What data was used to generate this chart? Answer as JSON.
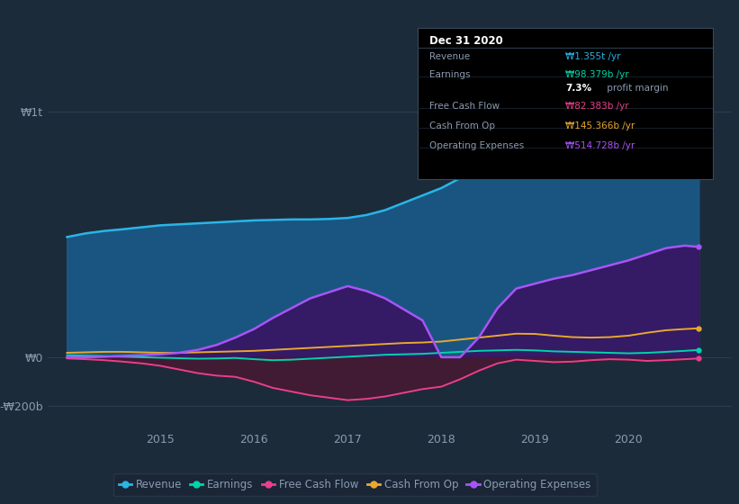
{
  "bg_color": "#1c2b3a",
  "plot_bg_color": "#1c2b3a",
  "text_color": "#8a9bb0",
  "revenue_color": "#29b5e8",
  "earnings_color": "#00d4aa",
  "fcf_color": "#e8408a",
  "cashop_color": "#e8a830",
  "opex_color": "#a855f7",
  "revenue_fill": "#1a5a8a",
  "opex_fill": "#3a1060",
  "fcf_fill": "#5a1030",
  "legend_items": [
    "Revenue",
    "Earnings",
    "Free Cash Flow",
    "Cash From Op",
    "Operating Expenses"
  ],
  "legend_colors": [
    "#29b5e8",
    "#00d4aa",
    "#e8408a",
    "#e8a830",
    "#a855f7"
  ],
  "x_data": [
    2014.0,
    2014.2,
    2014.4,
    2014.6,
    2014.8,
    2015.0,
    2015.2,
    2015.4,
    2015.6,
    2015.8,
    2016.0,
    2016.2,
    2016.4,
    2016.6,
    2016.8,
    2017.0,
    2017.2,
    2017.4,
    2017.6,
    2017.8,
    2018.0,
    2018.2,
    2018.4,
    2018.6,
    2018.8,
    2019.0,
    2019.2,
    2019.4,
    2019.6,
    2019.8,
    2020.0,
    2020.2,
    2020.4,
    2020.6,
    2020.75
  ],
  "revenue_y": [
    490,
    505,
    515,
    522,
    530,
    538,
    542,
    546,
    550,
    554,
    558,
    560,
    562,
    562,
    564,
    568,
    580,
    600,
    630,
    660,
    690,
    730,
    770,
    820,
    860,
    900,
    930,
    960,
    990,
    1020,
    1050,
    1080,
    1090,
    1090,
    1080
  ],
  "earnings_y": [
    8,
    6,
    4,
    2,
    0,
    -2,
    -4,
    -6,
    -5,
    -3,
    -8,
    -12,
    -10,
    -6,
    -2,
    2,
    6,
    10,
    12,
    14,
    18,
    22,
    26,
    28,
    30,
    28,
    24,
    22,
    20,
    18,
    16,
    18,
    22,
    26,
    30
  ],
  "fcf_y": [
    -5,
    -8,
    -12,
    -18,
    -25,
    -35,
    -50,
    -65,
    -75,
    -80,
    -100,
    -125,
    -140,
    -155,
    -165,
    -175,
    -170,
    -160,
    -145,
    -130,
    -120,
    -90,
    -55,
    -25,
    -10,
    -15,
    -20,
    -18,
    -12,
    -8,
    -10,
    -15,
    -12,
    -8,
    -5
  ],
  "cashop_y": [
    18,
    20,
    22,
    22,
    20,
    18,
    18,
    20,
    22,
    24,
    26,
    30,
    34,
    38,
    42,
    46,
    50,
    54,
    58,
    60,
    64,
    72,
    80,
    88,
    96,
    95,
    88,
    82,
    80,
    82,
    88,
    100,
    110,
    115,
    118
  ],
  "opex_y": [
    0,
    0,
    2,
    5,
    8,
    12,
    18,
    30,
    50,
    80,
    115,
    160,
    200,
    240,
    265,
    290,
    270,
    240,
    195,
    150,
    0,
    0,
    80,
    200,
    280,
    300,
    320,
    335,
    355,
    375,
    395,
    420,
    445,
    455,
    450
  ],
  "ylim": [
    -280,
    1200
  ],
  "xlim": [
    2013.8,
    2021.1
  ],
  "yticks": [
    1000,
    0,
    -200
  ],
  "ytick_labels": [
    "₩1t",
    "₩0",
    "-₩200b"
  ],
  "xticks": [
    2015,
    2016,
    2017,
    2018,
    2019,
    2020
  ],
  "xtick_labels": [
    "2015",
    "2016",
    "2017",
    "2018",
    "2019",
    "2020"
  ],
  "grid_color": "#2a3d50",
  "info_title": "Dec 31 2020",
  "info_rows": [
    {
      "label": "Revenue",
      "value": "₩1.355t /yr",
      "color": "#29b5e8"
    },
    {
      "label": "Earnings",
      "value": "₩98.379b /yr",
      "color": "#00d4aa"
    },
    {
      "label": "",
      "value": "7.3% profit margin",
      "color": "#ffffff"
    },
    {
      "label": "Free Cash Flow",
      "value": "₩82.383b /yr",
      "color": "#e8408a"
    },
    {
      "label": "Cash From Op",
      "value": "₩145.366b /yr",
      "color": "#e8a830"
    },
    {
      "label": "Operating Expenses",
      "value": "₩514.728b /yr",
      "color": "#a855f7"
    }
  ]
}
